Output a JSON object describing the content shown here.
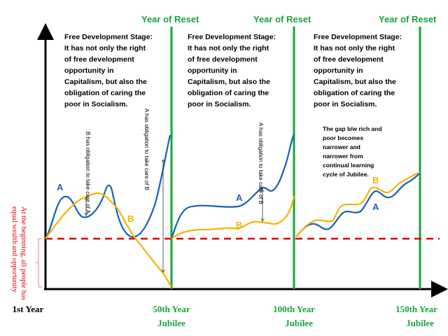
{
  "stage_text": "Free Development Stage:\nIt has not only the right\nof free development\nopportunity in\nCapitalism, but also the\nobligation of caring the\npoor in Socialism.",
  "reset_label": "Year of Reset",
  "x_labels": {
    "start": "1st Year",
    "y50": "50th Year",
    "y100": "100th Year",
    "y150": "150th Year",
    "jubilee": "Jubilee"
  },
  "series_labels": {
    "a": "A",
    "b": "B"
  },
  "annotations": {
    "b_obligation": "B has obligation to\ntake care of A",
    "a_obligation": "A has obligation to\ntake care of B",
    "gap_note": "The gap b/w rich and\npoor becomes\nnarrower and\nnarrower from\ncontinual learning\ncycle of Jubilee.",
    "beginning": "At the beginning, all people has\nequal wealth and opportunity"
  },
  "colors": {
    "a": "#1560bd",
    "b": "#f5b400",
    "reset": "#1aa33a",
    "baseline": "#e00000"
  }
}
